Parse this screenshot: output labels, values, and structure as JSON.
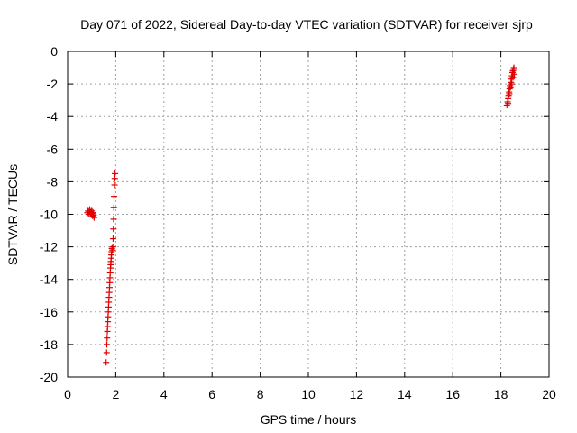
{
  "chart_data": {
    "type": "scatter",
    "title": "Day 071 of 2022, Sidereal Day-to-day VTEC variation (SDTVAR) for receiver sjrp",
    "xlabel": "GPS time / hours",
    "ylabel": "SDTVAR / TECUs",
    "xlim": [
      0,
      20
    ],
    "ylim": [
      -20,
      0
    ],
    "xticks": [
      0,
      2,
      4,
      6,
      8,
      10,
      12,
      14,
      16,
      18,
      20
    ],
    "yticks": [
      0,
      -2,
      -4,
      -6,
      -8,
      -10,
      -12,
      -14,
      -16,
      -18,
      -20
    ],
    "grid": true,
    "marker": "+",
    "color": "#e00000",
    "series": [
      {
        "name": "sjrp",
        "points": [
          [
            0.82,
            -9.9
          ],
          [
            0.85,
            -9.8
          ],
          [
            0.87,
            -10.0
          ],
          [
            0.9,
            -9.85
          ],
          [
            0.92,
            -9.7
          ],
          [
            0.95,
            -9.9
          ],
          [
            0.97,
            -10.0
          ],
          [
            1.0,
            -9.8
          ],
          [
            1.02,
            -9.95
          ],
          [
            1.04,
            -10.1
          ],
          [
            1.06,
            -9.9
          ],
          [
            1.08,
            -10.05
          ],
          [
            1.1,
            -10.2
          ],
          [
            1.6,
            -19.1
          ],
          [
            1.62,
            -18.5
          ],
          [
            1.63,
            -18.0
          ],
          [
            1.64,
            -17.6
          ],
          [
            1.65,
            -17.2
          ],
          [
            1.66,
            -16.9
          ],
          [
            1.67,
            -16.6
          ],
          [
            1.68,
            -16.3
          ],
          [
            1.69,
            -16.0
          ],
          [
            1.7,
            -15.7
          ],
          [
            1.71,
            -15.4
          ],
          [
            1.72,
            -15.1
          ],
          [
            1.73,
            -14.8
          ],
          [
            1.74,
            -14.5
          ],
          [
            1.75,
            -14.2
          ],
          [
            1.76,
            -13.9
          ],
          [
            1.77,
            -13.6
          ],
          [
            1.78,
            -13.3
          ],
          [
            1.79,
            -13.1
          ],
          [
            1.8,
            -12.9
          ],
          [
            1.81,
            -12.7
          ],
          [
            1.82,
            -12.5
          ],
          [
            1.83,
            -12.3
          ],
          [
            1.84,
            -12.1
          ],
          [
            1.86,
            -12.2
          ],
          [
            1.88,
            -12.0
          ],
          [
            1.89,
            -11.5
          ],
          [
            1.9,
            -10.9
          ],
          [
            1.91,
            -10.3
          ],
          [
            1.92,
            -9.6
          ],
          [
            1.93,
            -8.9
          ],
          [
            1.95,
            -8.2
          ],
          [
            1.96,
            -7.8
          ],
          [
            1.97,
            -7.5
          ],
          [
            18.25,
            -3.3
          ],
          [
            18.28,
            -3.1
          ],
          [
            18.3,
            -2.9
          ],
          [
            18.32,
            -2.7
          ],
          [
            18.34,
            -2.5
          ],
          [
            18.36,
            -2.3
          ],
          [
            18.38,
            -2.1
          ],
          [
            18.4,
            -2.2
          ],
          [
            18.42,
            -1.9
          ],
          [
            18.44,
            -1.7
          ],
          [
            18.46,
            -1.5
          ],
          [
            18.48,
            -1.3
          ],
          [
            18.5,
            -1.2
          ],
          [
            18.52,
            -1.1
          ],
          [
            18.54,
            -1.0
          ],
          [
            18.3,
            -3.2
          ],
          [
            18.35,
            -2.6
          ],
          [
            18.45,
            -2.0
          ],
          [
            18.5,
            -1.6
          ],
          [
            18.55,
            -1.4
          ]
        ]
      }
    ]
  }
}
